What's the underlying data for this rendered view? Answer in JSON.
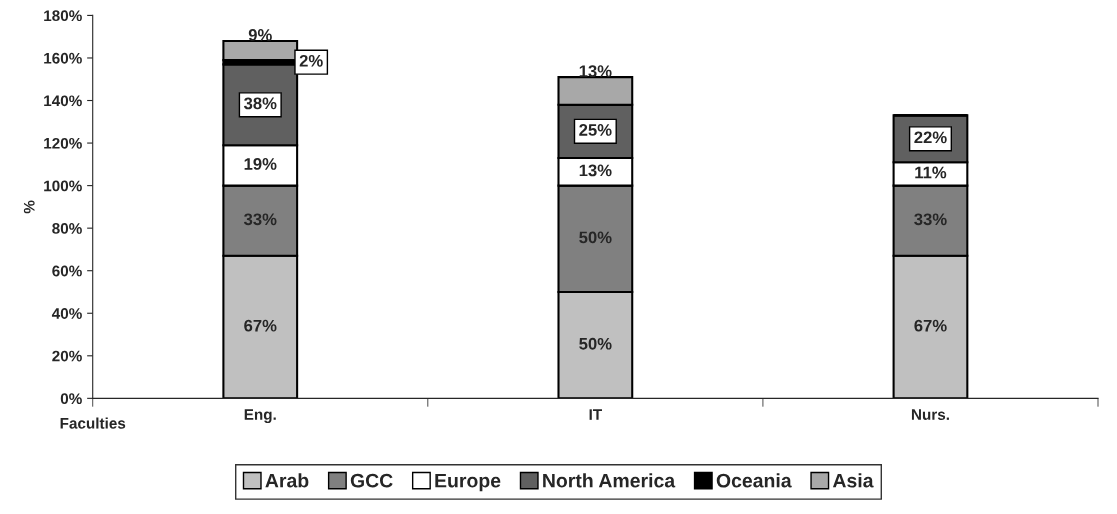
{
  "chart_data": {
    "type": "bar",
    "stacked": true,
    "ylabel": "%",
    "xlabel": "Faculties",
    "categories": [
      "Eng.",
      "IT",
      "Nurs."
    ],
    "series": [
      {
        "name": "Arab",
        "color": "#c0c0c0",
        "values": [
          67,
          50,
          67
        ],
        "value_labels": [
          "67%",
          "50%",
          "67%"
        ]
      },
      {
        "name": "GCC",
        "color": "#808080",
        "values": [
          33,
          50,
          33
        ],
        "value_labels": [
          "33%",
          "50%",
          "33%"
        ]
      },
      {
        "name": "Europe",
        "color": "#ffffff",
        "values": [
          19,
          13,
          11
        ],
        "value_labels": [
          "19%",
          "13%",
          "11%"
        ]
      },
      {
        "name": "North America",
        "color": "#606060",
        "values": [
          38,
          25,
          22
        ],
        "value_labels": [
          "38%",
          "25%",
          "22%"
        ]
      },
      {
        "name": "Oceania",
        "color": "#000000",
        "values": [
          2,
          0,
          0
        ],
        "value_labels": [
          "2%",
          null,
          null
        ]
      },
      {
        "name": "Asia",
        "color": "#a8a8a8",
        "values": [
          9,
          13,
          0
        ],
        "value_labels": [
          "9%",
          "13%",
          null
        ]
      }
    ],
    "ylim": [
      0,
      180
    ],
    "yticks": [
      {
        "value": 0,
        "label": "0%"
      },
      {
        "value": 20,
        "label": "20%"
      },
      {
        "value": 40,
        "label": "40%"
      },
      {
        "value": 60,
        "label": "60%"
      },
      {
        "value": 80,
        "label": "80%"
      },
      {
        "value": 100,
        "label": "100%"
      },
      {
        "value": 120,
        "label": "120%"
      },
      {
        "value": 140,
        "label": "140%"
      },
      {
        "value": 160,
        "label": "160%"
      },
      {
        "value": 180,
        "label": "180%"
      }
    ],
    "grid": false,
    "legend": "bottom"
  }
}
